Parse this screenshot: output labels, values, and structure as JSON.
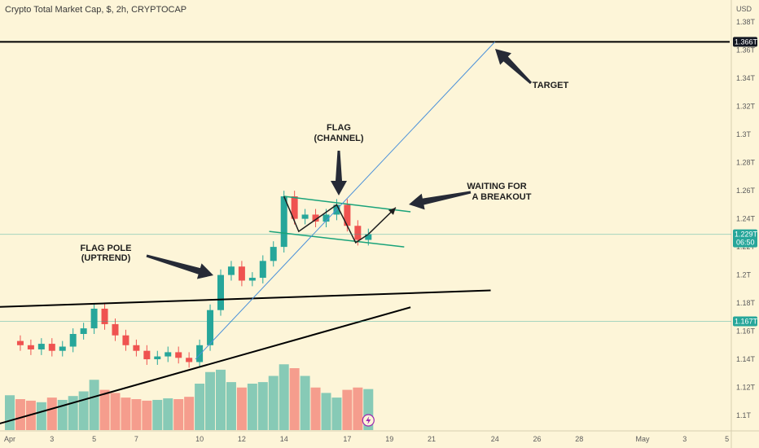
{
  "chart_title": "Crypto Total Market Cap, $, 2h, CRYPTOCAP",
  "chart_data": {
    "type": "candlestick",
    "title": "Crypto Total Market Cap, $, 2h, CRYPTOCAP",
    "currency_label": "USD",
    "ylim": [
      1.1,
      1.39
    ],
    "y_ticks": [
      {
        "label": "1.38T",
        "value": 1.38
      },
      {
        "label": "1.36T",
        "value": 1.36
      },
      {
        "label": "1.34T",
        "value": 1.34
      },
      {
        "label": "1.32T",
        "value": 1.32
      },
      {
        "label": "1.3T",
        "value": 1.3
      },
      {
        "label": "1.28T",
        "value": 1.28
      },
      {
        "label": "1.26T",
        "value": 1.26
      },
      {
        "label": "1.24T",
        "value": 1.24
      },
      {
        "label": "1.22T",
        "value": 1.22
      },
      {
        "label": "1.2T",
        "value": 1.2
      },
      {
        "label": "1.18T",
        "value": 1.18
      },
      {
        "label": "1.16T",
        "value": 1.16
      },
      {
        "label": "1.14T",
        "value": 1.14
      },
      {
        "label": "1.12T",
        "value": 1.12
      },
      {
        "label": "1.1T",
        "value": 1.1
      }
    ],
    "x_ticks": [
      {
        "label": "Apr",
        "day": 1
      },
      {
        "label": "3",
        "day": 3
      },
      {
        "label": "5",
        "day": 5
      },
      {
        "label": "7",
        "day": 7
      },
      {
        "label": "10",
        "day": 10
      },
      {
        "label": "12",
        "day": 12
      },
      {
        "label": "14",
        "day": 14
      },
      {
        "label": "17",
        "day": 17
      },
      {
        "label": "19",
        "day": 19
      },
      {
        "label": "21",
        "day": 21
      },
      {
        "label": "24",
        "day": 24
      },
      {
        "label": "26",
        "day": 26
      },
      {
        "label": "28",
        "day": 28
      },
      {
        "label": "May",
        "day": 31
      },
      {
        "label": "3",
        "day": 33
      },
      {
        "label": "5",
        "day": 35
      }
    ],
    "price_tags": [
      {
        "label": "1.366T",
        "value": 1.366,
        "style": "black"
      },
      {
        "label": "1.229T",
        "value": 1.229,
        "style": "green",
        "sub": "06:50"
      },
      {
        "label": "1.167T",
        "value": 1.167,
        "style": "green"
      }
    ],
    "price_series": [
      {
        "day": 1.0,
        "close": 1.153
      },
      {
        "day": 1.5,
        "close": 1.15
      },
      {
        "day": 2.0,
        "close": 1.147
      },
      {
        "day": 2.5,
        "close": 1.151
      },
      {
        "day": 3.0,
        "close": 1.146
      },
      {
        "day": 3.5,
        "close": 1.149
      },
      {
        "day": 4.0,
        "close": 1.158
      },
      {
        "day": 4.5,
        "close": 1.162
      },
      {
        "day": 5.0,
        "close": 1.176
      },
      {
        "day": 5.5,
        "close": 1.165
      },
      {
        "day": 6.0,
        "close": 1.157
      },
      {
        "day": 6.5,
        "close": 1.15
      },
      {
        "day": 7.0,
        "close": 1.146
      },
      {
        "day": 7.5,
        "close": 1.14
      },
      {
        "day": 8.0,
        "close": 1.142
      },
      {
        "day": 8.5,
        "close": 1.145
      },
      {
        "day": 9.0,
        "close": 1.141
      },
      {
        "day": 9.5,
        "close": 1.138
      },
      {
        "day": 10.0,
        "close": 1.15
      },
      {
        "day": 10.5,
        "close": 1.175
      },
      {
        "day": 11.0,
        "close": 1.2
      },
      {
        "day": 11.5,
        "close": 1.206
      },
      {
        "day": 12.0,
        "close": 1.196
      },
      {
        "day": 12.5,
        "close": 1.198
      },
      {
        "day": 13.0,
        "close": 1.21
      },
      {
        "day": 13.5,
        "close": 1.22
      },
      {
        "day": 14.0,
        "close": 1.256
      },
      {
        "day": 14.5,
        "close": 1.24
      },
      {
        "day": 15.0,
        "close": 1.243
      },
      {
        "day": 15.5,
        "close": 1.238
      },
      {
        "day": 16.0,
        "close": 1.243
      },
      {
        "day": 16.5,
        "close": 1.25
      },
      {
        "day": 17.0,
        "close": 1.235
      },
      {
        "day": 17.5,
        "close": 1.225
      },
      {
        "day": 18.0,
        "close": 1.229
      }
    ],
    "volume_note": "relative volume bars at bottom of chart",
    "volume_series": [
      0.45,
      0.4,
      0.38,
      0.36,
      0.42,
      0.39,
      0.44,
      0.5,
      0.65,
      0.52,
      0.48,
      0.42,
      0.4,
      0.38,
      0.39,
      0.41,
      0.4,
      0.43,
      0.6,
      0.75,
      0.78,
      0.62,
      0.55,
      0.6,
      0.62,
      0.7,
      0.85,
      0.8,
      0.7,
      0.55,
      0.48,
      0.42,
      0.52,
      0.55,
      0.53
    ],
    "lines": [
      {
        "name": "flag-upper",
        "from": {
          "day": 14.0,
          "value": 1.256
        },
        "to": {
          "day": 20.0,
          "value": 1.245
        }
      },
      {
        "name": "flag-lower",
        "from": {
          "day": 13.3,
          "value": 1.231
        },
        "to": {
          "day": 19.7,
          "value": 1.22
        }
      },
      {
        "name": "resistance",
        "from": {
          "day": 0.0,
          "value": 1.177
        },
        "to": {
          "day": 23.8,
          "value": 1.189
        }
      },
      {
        "name": "support",
        "from": {
          "day": 0.0,
          "value": 1.092
        },
        "to": {
          "day": 20.0,
          "value": 1.177
        }
      },
      {
        "name": "target-level",
        "from": {
          "day": 0.0,
          "value": 1.366
        },
        "to": {
          "day": 36.0,
          "value": 1.366
        }
      },
      {
        "name": "projection",
        "from": {
          "day": 9.8,
          "value": 1.14
        },
        "to": {
          "day": 24.0,
          "value": 1.366
        }
      }
    ],
    "annotations": [
      {
        "text": "TARGET"
      },
      {
        "text": "FLAG"
      },
      {
        "text": "(CHANNEL)"
      },
      {
        "text": "WAITING FOR"
      },
      {
        "text": "A  BREAKOUT"
      },
      {
        "text": "FLAG POLE"
      },
      {
        "text": "(UPTREND)"
      }
    ],
    "colors": {
      "background": "#fdf5d8",
      "up": "#26a69a",
      "down": "#ef5350",
      "channel": "#1aa37a",
      "projection": "#4a90d9",
      "trendline": "#000000",
      "target_tag": "#131722",
      "green_tag": "#26a69a"
    }
  }
}
